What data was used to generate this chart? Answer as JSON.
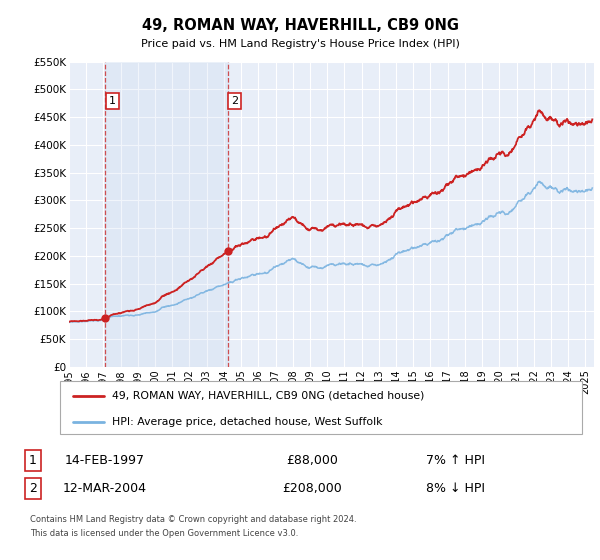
{
  "title": "49, ROMAN WAY, HAVERHILL, CB9 0NG",
  "subtitle": "Price paid vs. HM Land Registry's House Price Index (HPI)",
  "ylim": [
    0,
    550000
  ],
  "yticks": [
    0,
    50000,
    100000,
    150000,
    200000,
    250000,
    300000,
    350000,
    400000,
    450000,
    500000,
    550000
  ],
  "ytick_labels": [
    "£0",
    "£50K",
    "£100K",
    "£150K",
    "£200K",
    "£250K",
    "£300K",
    "£350K",
    "£400K",
    "£450K",
    "£500K",
    "£550K"
  ],
  "xlim_start": 1995.0,
  "xlim_end": 2025.5,
  "background_color": "#ffffff",
  "plot_bg_color": "#e8eef8",
  "grid_color": "#ffffff",
  "sale1_date": 1997.12,
  "sale1_price": 88000,
  "sale1_label": "1",
  "sale2_date": 2004.21,
  "sale2_price": 208000,
  "sale2_label": "2",
  "hpi_color": "#7ab3e0",
  "price_color": "#cc2222",
  "vline_color": "#cc3333",
  "legend_label_price": "49, ROMAN WAY, HAVERHILL, CB9 0NG (detached house)",
  "legend_label_hpi": "HPI: Average price, detached house, West Suffolk",
  "table_row1": [
    "1",
    "14-FEB-1997",
    "£88,000",
    "7% ↑ HPI"
  ],
  "table_row2": [
    "2",
    "12-MAR-2004",
    "£208,000",
    "8% ↓ HPI"
  ],
  "footnote1": "Contains HM Land Registry data © Crown copyright and database right 2024.",
  "footnote2": "This data is licensed under the Open Government Licence v3.0."
}
